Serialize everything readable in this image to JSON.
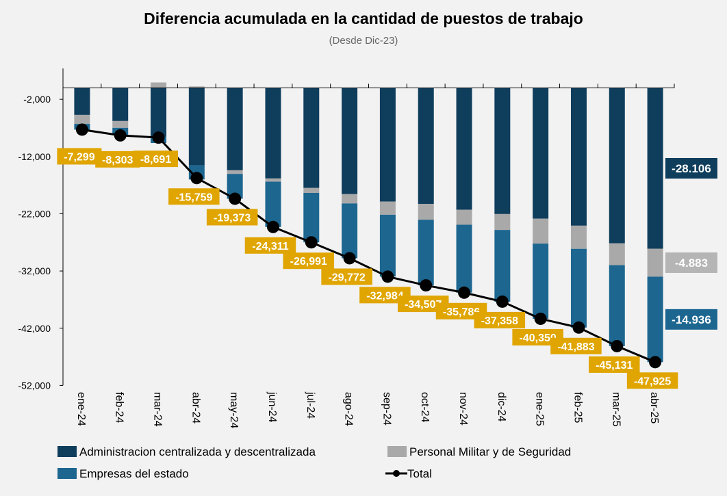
{
  "chart_data": {
    "type": "bar",
    "stacked": true,
    "title": "Diferencia acumulada en la cantidad de puestos de trabajo",
    "subtitle": "(Desde Dic-23)",
    "xlabel": "",
    "ylabel": "",
    "ylim": [
      -52000,
      3400
    ],
    "yticks": [
      -2000,
      -12000,
      -22000,
      -32000,
      -42000,
      -52000
    ],
    "ytick_labels": [
      "-2,000",
      "-12,000",
      "-22,000",
      "-32,000",
      "-42,000",
      "-52,000"
    ],
    "grid": false,
    "legend_position": "bottom",
    "categories": [
      "ene-24",
      "feb-24",
      "mar-24",
      "abr-24",
      "may-24",
      "jun-24",
      "jul-24",
      "ago-24",
      "sep-24",
      "oct-24",
      "nov-24",
      "dic-24",
      "ene-25",
      "feb-25",
      "mar-25",
      "abr-25"
    ],
    "series": [
      {
        "name": "Administracion centralizada y descentralizada",
        "color": "#0F3D5C",
        "values": [
          -4720,
          -5790,
          -8500,
          -13530,
          -14400,
          -15830,
          -17490,
          -18570,
          -19870,
          -20270,
          -21300,
          -22050,
          -22850,
          -24080,
          -27170,
          -28106
        ]
      },
      {
        "name": "Personal Militar y de Seguridad",
        "color": "#A9A9A9",
        "values": [
          -1570,
          -1190,
          950,
          250,
          -630,
          -560,
          -870,
          -1630,
          -2300,
          -2770,
          -2620,
          -2780,
          -4360,
          -4050,
          -3810,
          -4883
        ]
      },
      {
        "name": "Empresas del estado",
        "color": "#1C6690",
        "values": [
          -1009,
          -1323,
          -1141,
          -2479,
          -4343,
          -7921,
          -8631,
          -9572,
          -10814,
          -11467,
          -11866,
          -12528,
          -13140,
          -13753,
          -14151,
          -14936
        ]
      },
      {
        "name": "Total",
        "type": "line",
        "color": "#000000",
        "values": [
          -7299,
          -8303,
          -8691,
          -15759,
          -19373,
          -24311,
          -26991,
          -29772,
          -32984,
          -34507,
          -35786,
          -37358,
          -40350,
          -41883,
          -45131,
          -47925
        ]
      }
    ],
    "total_labels": [
      "-7,299",
      "-8,303",
      "-8,691",
      "-15,759",
      "-19,373",
      "-24,311",
      "-26,991",
      "-29,772",
      "-32,984",
      "-34,507",
      "-35,786",
      "-37,358",
      "-40,350",
      "-41,883",
      "-45,131",
      "-47,925"
    ],
    "total_label_color": "#E0A500",
    "last_segment_labels": [
      {
        "series": "Administracion centralizada y descentralizada",
        "text": "-28.106",
        "color": "#0F3D5C"
      },
      {
        "series": "Personal Militar y de Seguridad",
        "text": "-4.883",
        "color": "#B5B5B5"
      },
      {
        "series": "Empresas del estado",
        "text": "-14.936",
        "color": "#1C6690"
      }
    ]
  }
}
